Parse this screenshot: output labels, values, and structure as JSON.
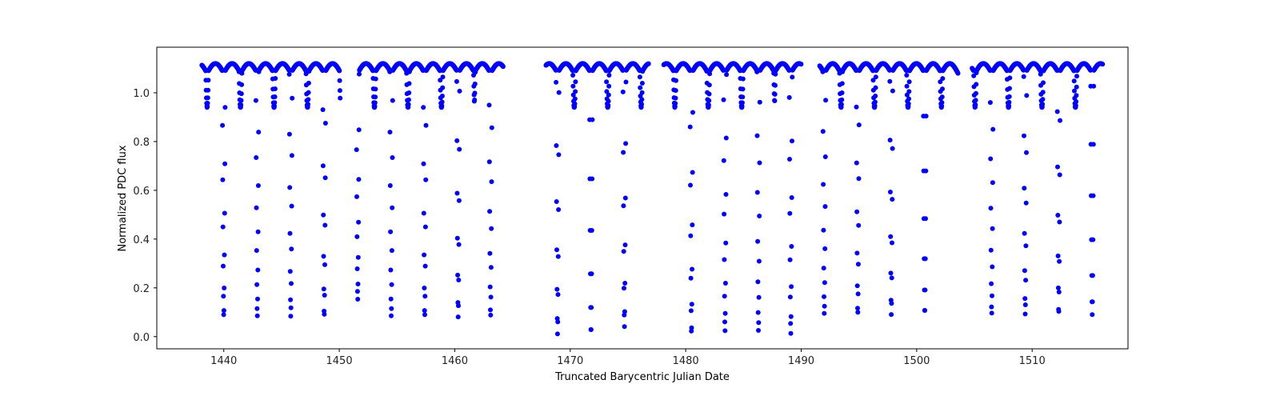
{
  "chart_data": {
    "type": "scatter",
    "title": "",
    "xlabel": "Truncated Barycentric Julian Date",
    "ylabel": "Normalized PDC flux",
    "xlim": [
      1434.2,
      1518.3
    ],
    "ylim": [
      -0.05,
      1.187
    ],
    "grid": false,
    "legend": null,
    "marker_color": "#0000ff",
    "marker_size": 3,
    "x_ticks": [
      1440,
      1450,
      1460,
      1470,
      1480,
      1490,
      1500,
      1510
    ],
    "x_tick_labels": [
      "1440",
      "1450",
      "1460",
      "1470",
      "1480",
      "1490",
      "1500",
      "1510"
    ],
    "y_ticks": [
      0.0,
      0.2,
      0.4,
      0.6,
      0.8,
      1.0
    ],
    "y_tick_labels": [
      "0.0",
      "0.2",
      "0.4",
      "0.6",
      "0.8",
      "1.0"
    ],
    "series": [
      {
        "name": "light curve",
        "description": "Eclipsing binary light curve; out-of-eclipse flux ~1.05-1.12 with ellipsoidal variation, primary eclipses reaching ~0.0-0.09, secondary eclipses reaching ~0.94",
        "segments": [
          {
            "start": 1438.1,
            "end": 1450.1
          },
          {
            "start": 1451.5,
            "end": 1464.2
          },
          {
            "start": 1467.9,
            "end": 1476.8
          },
          {
            "start": 1478.1,
            "end": 1490.0
          },
          {
            "start": 1491.6,
            "end": 1503.6
          },
          {
            "start": 1504.8,
            "end": 1516.1
          }
        ],
        "period_days": 2.885,
        "primary_eclipse_times": [
          1440.0,
          1442.9,
          1445.8,
          1448.7,
          1451.6,
          1454.5,
          1457.4,
          1460.3,
          1463.1,
          1468.9,
          1471.8,
          1474.7,
          1480.5,
          1483.4,
          1486.3,
          1489.1,
          1492.0,
          1494.9,
          1497.8,
          1500.7,
          1506.5,
          1509.4,
          1512.3,
          1515.2
        ],
        "primary_eclipse_min_flux": [
          0.08,
          0.08,
          0.08,
          0.08,
          0.15,
          0.08,
          0.08,
          0.08,
          0.08,
          0.01,
          0.01,
          0.04,
          0.01,
          0.02,
          0.02,
          0.01,
          0.09,
          0.09,
          0.09,
          0.09,
          0.09,
          0.09,
          0.09,
          0.09
        ],
        "secondary_eclipse_min_flux": 0.94,
        "out_of_eclipse_flux_range": [
          1.03,
          1.12
        ],
        "cadence_days": 0.0208
      }
    ]
  }
}
